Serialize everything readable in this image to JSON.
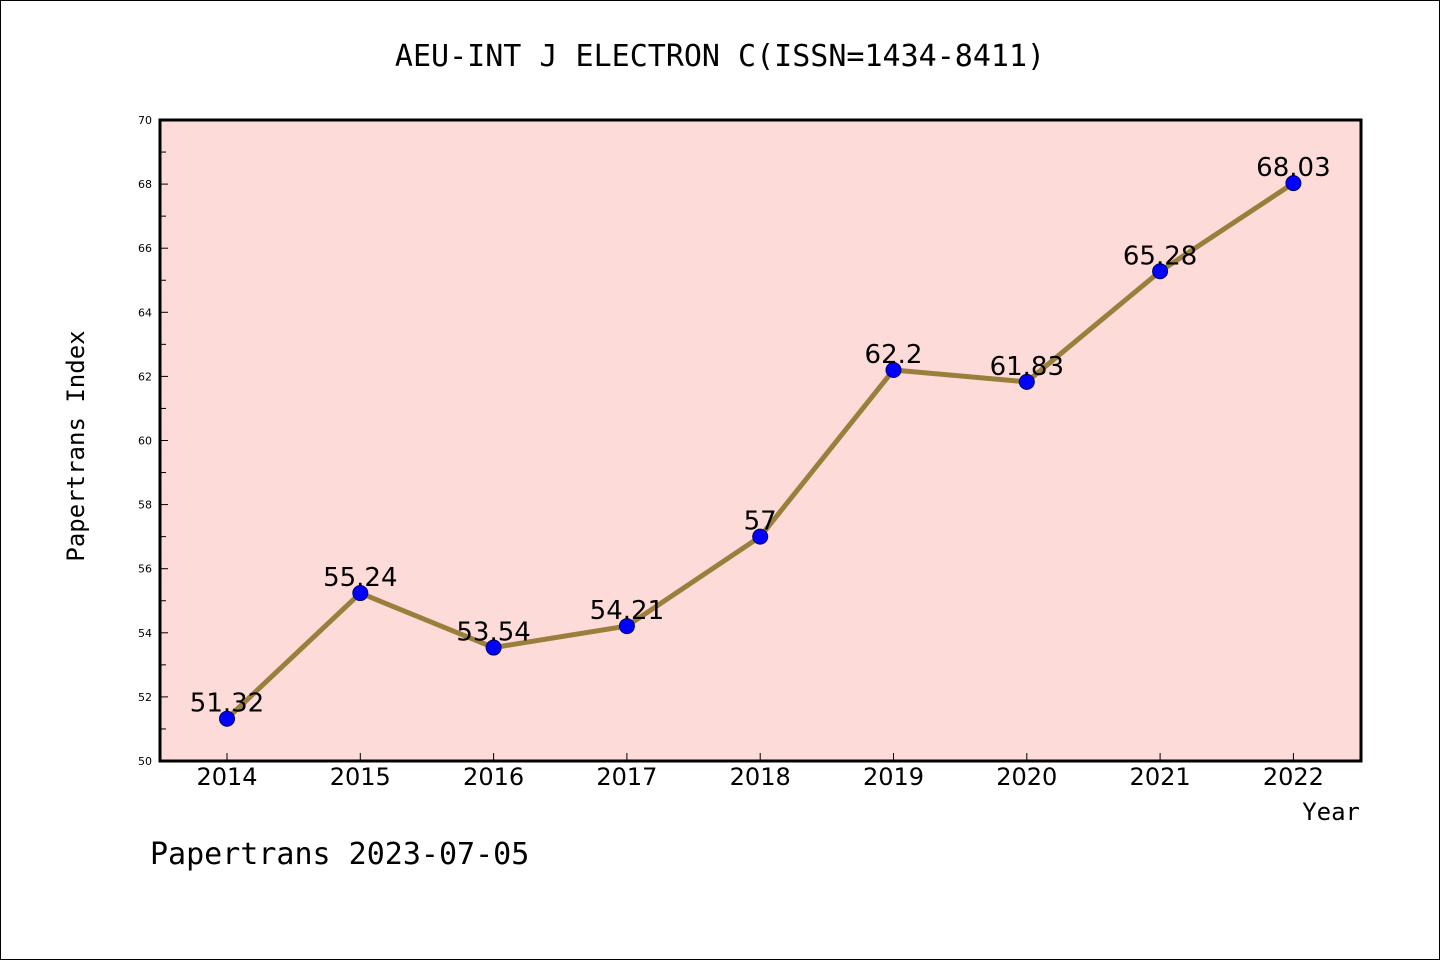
{
  "chart_data": {
    "type": "line",
    "title": "AEU-INT J ELECTRON C(ISSN=1434-8411)",
    "xlabel": "Year",
    "ylabel": "Papertrans Index",
    "footer": "Papertrans 2023-07-05",
    "categories": [
      "2014",
      "2015",
      "2016",
      "2017",
      "2018",
      "2019",
      "2020",
      "2021",
      "2022"
    ],
    "values": [
      51.32,
      55.24,
      53.54,
      54.21,
      57,
      62.2,
      61.83,
      65.28,
      68.03
    ],
    "data_labels": [
      "51.32",
      "55.24",
      "53.54",
      "54.21",
      "57",
      "62.2",
      "61.83",
      "65.28",
      "68.03"
    ],
    "ylim": [
      50,
      70
    ],
    "yticks": [
      "50",
      "52",
      "54",
      "56",
      "58",
      "60",
      "62",
      "64",
      "66",
      "68",
      "70"
    ],
    "grid": false,
    "legend": "none",
    "colors": {
      "plot_background": "#fddbd8",
      "line": "#9a7f3c",
      "marker": "#0000ff"
    }
  }
}
